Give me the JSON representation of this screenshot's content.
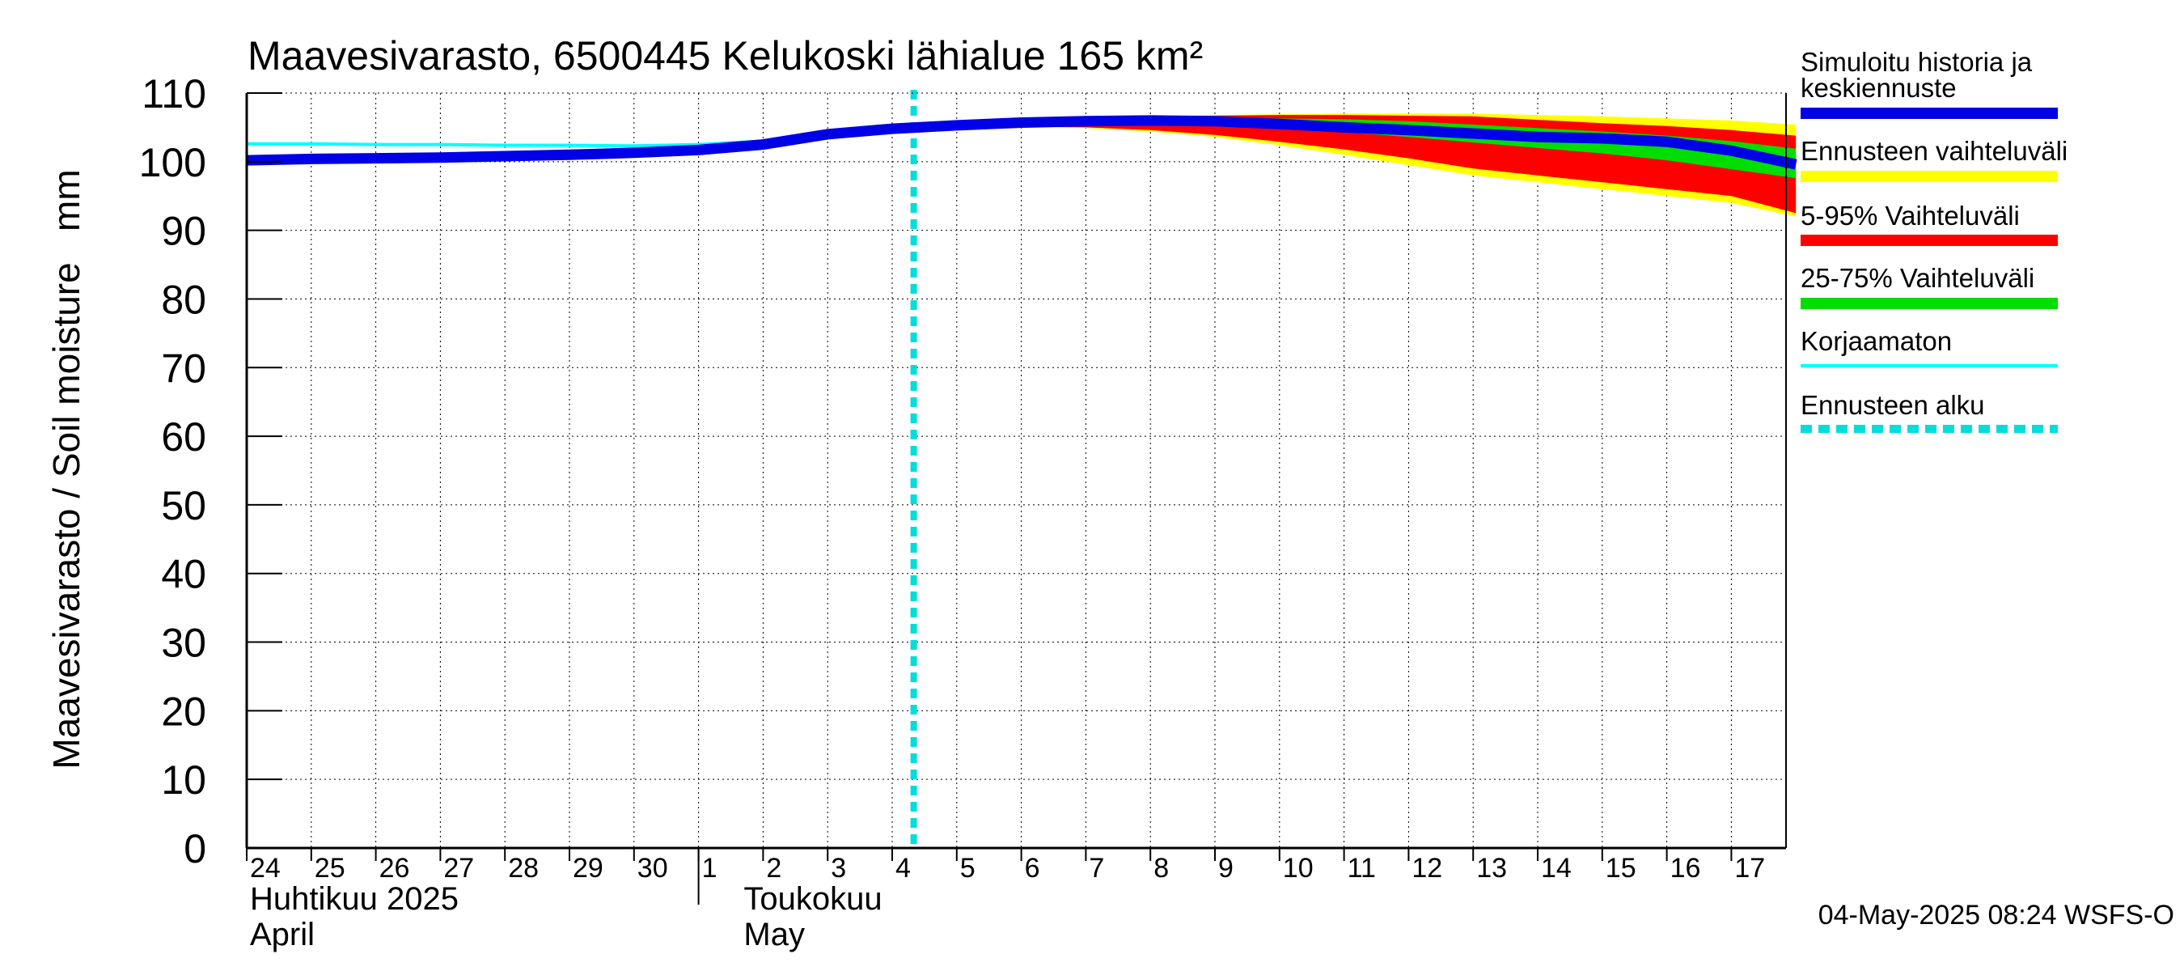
{
  "chart_data": {
    "type": "area",
    "title": "Maavesivarasto, 6500445 Kelukoski lähialue 165 km²",
    "ylabel": "Maavesivarasto / Soil moisture   mm",
    "ylim": [
      0,
      110
    ],
    "yticks": [
      0,
      10,
      20,
      30,
      40,
      50,
      60,
      70,
      80,
      90,
      100,
      110
    ],
    "xlim": [
      "2025-04-24",
      "2025-05-17T24:00"
    ],
    "grid": true,
    "legend_position": "right",
    "x_day_labels": [
      "24",
      "25",
      "26",
      "27",
      "28",
      "29",
      "30",
      "1",
      "2",
      "3",
      "4",
      "5",
      "6",
      "7",
      "8",
      "9",
      "10",
      "11",
      "12",
      "13",
      "14",
      "15",
      "16",
      "17"
    ],
    "month_labels": [
      {
        "fi": "Huhtikuu  2025",
        "en": "April"
      },
      {
        "fi": "Toukokuu",
        "en": "May"
      }
    ],
    "forecast_start": "2025-05-04T08:00",
    "colors": {
      "simulated": "#0000e6",
      "range_full": "#ffff00",
      "range_5_95": "#ff0000",
      "range_25_75": "#00dd00",
      "uncorrected": "#00ffff",
      "forecast_start": "#00dddd"
    },
    "legend": [
      {
        "label": "Simuloitu historia ja keskiennuste",
        "key": "simulated"
      },
      {
        "label": "Ennusteen vaihteluväli",
        "key": "range_full"
      },
      {
        "label": "5-95% Vaihteluväli",
        "key": "range_5_95"
      },
      {
        "label": "25-75% Vaihteluväli",
        "key": "range_25_75"
      },
      {
        "label": "Korjaamaton",
        "key": "uncorrected"
      },
      {
        "label": "Ennusteen alku",
        "key": "forecast_start"
      }
    ],
    "series": [
      {
        "name": "Simuloitu historia ja keskiennuste",
        "x": [
          "2025-04-24",
          "2025-04-25",
          "2025-04-26",
          "2025-04-27",
          "2025-04-28",
          "2025-04-29",
          "2025-04-30",
          "2025-05-01",
          "2025-05-02",
          "2025-05-03",
          "2025-05-04",
          "2025-05-05",
          "2025-05-06",
          "2025-05-07",
          "2025-05-08",
          "2025-05-09",
          "2025-05-10",
          "2025-05-11",
          "2025-05-12",
          "2025-05-13",
          "2025-05-14",
          "2025-05-15",
          "2025-05-16",
          "2025-05-17",
          "2025-05-17T24:00"
        ],
        "y": [
          100.2,
          100.4,
          100.5,
          100.6,
          100.8,
          101.0,
          101.3,
          101.7,
          102.5,
          104.0,
          104.8,
          105.3,
          105.7,
          105.9,
          106.0,
          105.9,
          105.5,
          105.0,
          104.6,
          104.1,
          103.6,
          103.4,
          102.9,
          101.6,
          99.6
        ]
      },
      {
        "name": "Korjaamaton",
        "x": [
          "2025-04-24",
          "2025-04-25",
          "2025-04-26",
          "2025-04-27",
          "2025-04-28",
          "2025-04-29",
          "2025-04-30",
          "2025-05-01",
          "2025-05-02"
        ],
        "y": [
          102.6,
          102.6,
          102.5,
          102.5,
          102.4,
          102.4,
          102.3,
          102.5,
          103.0
        ]
      }
    ],
    "bands": [
      {
        "name": "Ennusteen vaihteluväli",
        "key": "range_full",
        "x": [
          "2025-05-04",
          "2025-05-05",
          "2025-05-06",
          "2025-05-07",
          "2025-05-08",
          "2025-05-09",
          "2025-05-10",
          "2025-05-11",
          "2025-05-12",
          "2025-05-13",
          "2025-05-14",
          "2025-05-15",
          "2025-05-16",
          "2025-05-17",
          "2025-05-17T24:00"
        ],
        "upper": [
          104.8,
          105.4,
          105.9,
          106.3,
          106.6,
          106.8,
          106.9,
          107.0,
          107.0,
          107.0,
          106.8,
          106.6,
          106.3,
          106.0,
          105.4
        ],
        "lower": [
          104.8,
          105.0,
          105.1,
          104.9,
          104.4,
          103.6,
          102.4,
          101.0,
          99.5,
          98.0,
          97.0,
          96.0,
          95.0,
          94.0,
          92.0
        ]
      },
      {
        "name": "5-95% Vaihteluväli",
        "key": "range_5_95",
        "x": [
          "2025-05-04",
          "2025-05-05",
          "2025-05-06",
          "2025-05-07",
          "2025-05-08",
          "2025-05-09",
          "2025-05-10",
          "2025-05-11",
          "2025-05-12",
          "2025-05-13",
          "2025-05-14",
          "2025-05-15",
          "2025-05-16",
          "2025-05-17",
          "2025-05-17T24:00"
        ],
        "upper": [
          104.8,
          105.4,
          105.9,
          106.3,
          106.5,
          106.7,
          106.8,
          106.8,
          106.7,
          106.6,
          106.1,
          105.6,
          105.2,
          104.6,
          103.8
        ],
        "lower": [
          104.8,
          105.0,
          105.1,
          105.0,
          104.6,
          103.9,
          102.9,
          101.8,
          100.5,
          99.0,
          98.0,
          97.0,
          96.0,
          95.0,
          92.5
        ]
      },
      {
        "name": "25-75% Vaihteluväli",
        "key": "range_25_75",
        "x": [
          "2025-05-04",
          "2025-05-05",
          "2025-05-06",
          "2025-05-07",
          "2025-05-08",
          "2025-05-09",
          "2025-05-10",
          "2025-05-11",
          "2025-05-12",
          "2025-05-13",
          "2025-05-14",
          "2025-05-15",
          "2025-05-16",
          "2025-05-17",
          "2025-05-17T24:00"
        ],
        "upper": [
          104.8,
          105.3,
          105.8,
          106.1,
          106.3,
          106.4,
          106.3,
          106.2,
          105.9,
          105.4,
          104.9,
          104.4,
          103.8,
          103.0,
          101.9
        ],
        "lower": [
          104.8,
          105.1,
          105.4,
          105.6,
          105.6,
          105.3,
          104.9,
          104.3,
          103.6,
          102.8,
          102.0,
          101.2,
          100.2,
          98.9,
          97.6
        ]
      }
    ],
    "footer": "04-May-2025 08:24 WSFS-O"
  }
}
